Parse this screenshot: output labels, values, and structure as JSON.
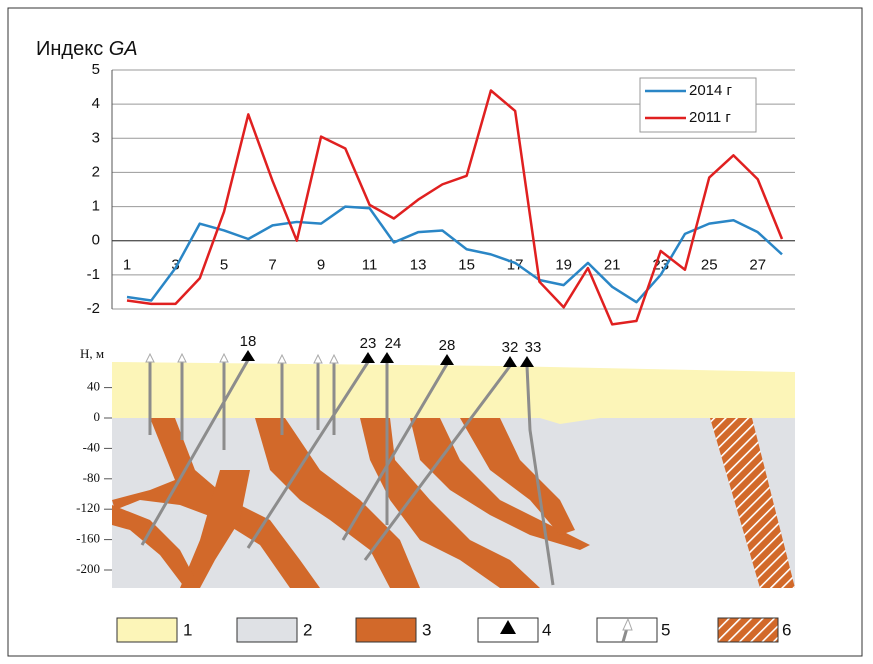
{
  "chart_data": {
    "type": "line",
    "title": [
      "Индекс",
      "GA"
    ],
    "categories": [
      "1",
      null,
      "3",
      null,
      "5",
      null,
      "7",
      null,
      "9",
      null,
      "11",
      null,
      "13",
      null,
      "15",
      null,
      "17",
      null,
      "19",
      null,
      "21",
      null,
      "23",
      null,
      "25",
      null,
      "27",
      null
    ],
    "series": [
      {
        "name": "2014 г",
        "color": "#2a86c6",
        "values": [
          -1.65,
          -1.75,
          -0.8,
          0.5,
          0.3,
          0.05,
          0.45,
          0.55,
          0.5,
          1.0,
          0.95,
          -0.05,
          0.25,
          0.3,
          -0.25,
          -0.4,
          -0.65,
          -1.15,
          -1.3,
          -0.65,
          -1.35,
          -1.8,
          -1.0,
          0.2,
          0.5,
          0.6,
          0.25,
          -0.4
        ]
      },
      {
        "name": "2011 г",
        "color": "#e02020",
        "values": [
          -1.75,
          -1.85,
          -1.85,
          -1.1,
          0.85,
          3.7,
          1.75,
          0.0,
          3.05,
          2.7,
          1.05,
          0.65,
          1.2,
          1.65,
          1.9,
          4.4,
          3.8,
          -1.2,
          -1.95,
          -0.8,
          -2.45,
          -2.35,
          -0.3,
          -0.85,
          1.85,
          2.5,
          1.8,
          0.05
        ]
      }
    ],
    "ylim": [
      -2,
      5
    ],
    "yticks": [
      -2,
      -1,
      0,
      1,
      2,
      3,
      4,
      5
    ],
    "grid": true,
    "legend": "upper right"
  },
  "section": {
    "axis_label": "Н, м",
    "yticks": [
      40,
      0,
      -40,
      -80,
      -120,
      -160,
      -200
    ],
    "wells": [
      "18",
      "23",
      "24",
      "28",
      "32",
      "33"
    ]
  },
  "legend": [
    "1",
    "2",
    "3",
    "4",
    "5",
    "6"
  ]
}
